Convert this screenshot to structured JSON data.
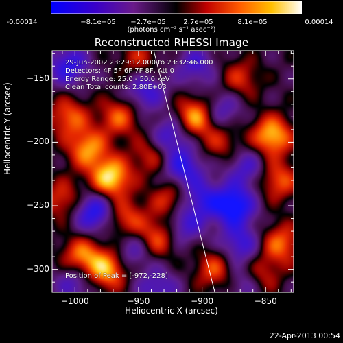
{
  "colorbar": {
    "tick_labels": [
      "-0.00014",
      "−8.1e−05",
      "−2.7e−05",
      "2.7e−05",
      "8.1e−05",
      "0.00014"
    ],
    "unit": "(photons cm⁻² s⁻¹ asec⁻²)",
    "colors": [
      "#0000ff",
      "#3a00b0",
      "#6a1a8a",
      "#000000",
      "#b00000",
      "#ff6a00",
      "#ffd000",
      "#ffffff"
    ]
  },
  "annotations": {
    "time": "29-Jun-2002 23:29:12.000 to 23:32:46.000",
    "detectors": "Detectors: 4F 5F 6F 7F 8F, Att 0",
    "energy": "Energy Range: 25.0 - 50.0 keV",
    "clean": "Clean     Total counts: 2.80E+03",
    "peak": "Position of Peak = [-972,-228]"
  },
  "footer": {
    "timestamp": "22-Apr-2013 00:54"
  },
  "chart_data": {
    "type": "heatmap",
    "title": "Reconstructed RHESSI Image",
    "xlabel": "Heliocentric X (arcsec)",
    "ylabel": "Heliocentric Y (arcsec)",
    "xlim": [
      -1018,
      -828
    ],
    "ylim": [
      -318,
      -128
    ],
    "xticks": [
      -1000,
      -950,
      -900,
      -850
    ],
    "yticks": [
      -150,
      -200,
      -250,
      -300
    ],
    "xtick_labels": [
      "−1000",
      "−950",
      "−900",
      "−850"
    ],
    "ytick_labels": [
      "−150",
      "−200",
      "−250",
      "−300"
    ],
    "zlim": [
      -0.00014,
      0.00014
    ],
    "peak": [
      -972,
      -228
    ],
    "limb_line": [
      [
        -938,
        -128
      ],
      [
        -890,
        -318
      ]
    ],
    "blobs": [
      {
        "x": -972,
        "y": -228,
        "amp": 1.0
      },
      {
        "x": -990,
        "y": -205,
        "amp": 0.75
      },
      {
        "x": -1005,
        "y": -180,
        "amp": 0.6
      },
      {
        "x": -995,
        "y": -290,
        "amp": 0.7
      },
      {
        "x": -975,
        "y": -300,
        "amp": 0.85
      },
      {
        "x": -965,
        "y": -180,
        "amp": 0.6
      },
      {
        "x": -960,
        "y": -260,
        "amp": 0.55
      },
      {
        "x": -940,
        "y": -210,
        "amp": 0.45
      },
      {
        "x": -935,
        "y": -275,
        "amp": 0.6
      },
      {
        "x": -925,
        "y": -245,
        "amp": 0.5
      },
      {
        "x": -905,
        "y": -180,
        "amp": 0.85
      },
      {
        "x": -890,
        "y": -300,
        "amp": 0.55
      },
      {
        "x": -885,
        "y": -200,
        "amp": 0.4
      },
      {
        "x": -870,
        "y": -150,
        "amp": 0.45
      },
      {
        "x": -845,
        "y": -195,
        "amp": 0.9
      },
      {
        "x": -840,
        "y": -230,
        "amp": 0.6
      },
      {
        "x": -838,
        "y": -280,
        "amp": 0.65
      },
      {
        "x": -855,
        "y": -305,
        "amp": 0.55
      },
      {
        "x": -1010,
        "y": -245,
        "amp": 0.5
      },
      {
        "x": -950,
        "y": -135,
        "amp": 0.4
      },
      {
        "x": -1000,
        "y": -310,
        "amp": -0.5
      },
      {
        "x": -1005,
        "y": -140,
        "amp": -0.7
      },
      {
        "x": -985,
        "y": -255,
        "amp": -0.8
      },
      {
        "x": -955,
        "y": -285,
        "amp": -0.45
      },
      {
        "x": -945,
        "y": -160,
        "amp": -0.6
      },
      {
        "x": -925,
        "y": -195,
        "amp": -0.6
      },
      {
        "x": -915,
        "y": -220,
        "amp": -0.7
      },
      {
        "x": -915,
        "y": -265,
        "amp": -0.55
      },
      {
        "x": -905,
        "y": -140,
        "amp": -0.5
      },
      {
        "x": -900,
        "y": -245,
        "amp": -0.6
      },
      {
        "x": -885,
        "y": -175,
        "amp": -0.5
      },
      {
        "x": -875,
        "y": -250,
        "amp": -1.0
      },
      {
        "x": -870,
        "y": -280,
        "amp": -0.6
      },
      {
        "x": -865,
        "y": -220,
        "amp": -0.5
      },
      {
        "x": -865,
        "y": -310,
        "amp": -0.5
      },
      {
        "x": -935,
        "y": -315,
        "amp": -0.5
      }
    ]
  }
}
